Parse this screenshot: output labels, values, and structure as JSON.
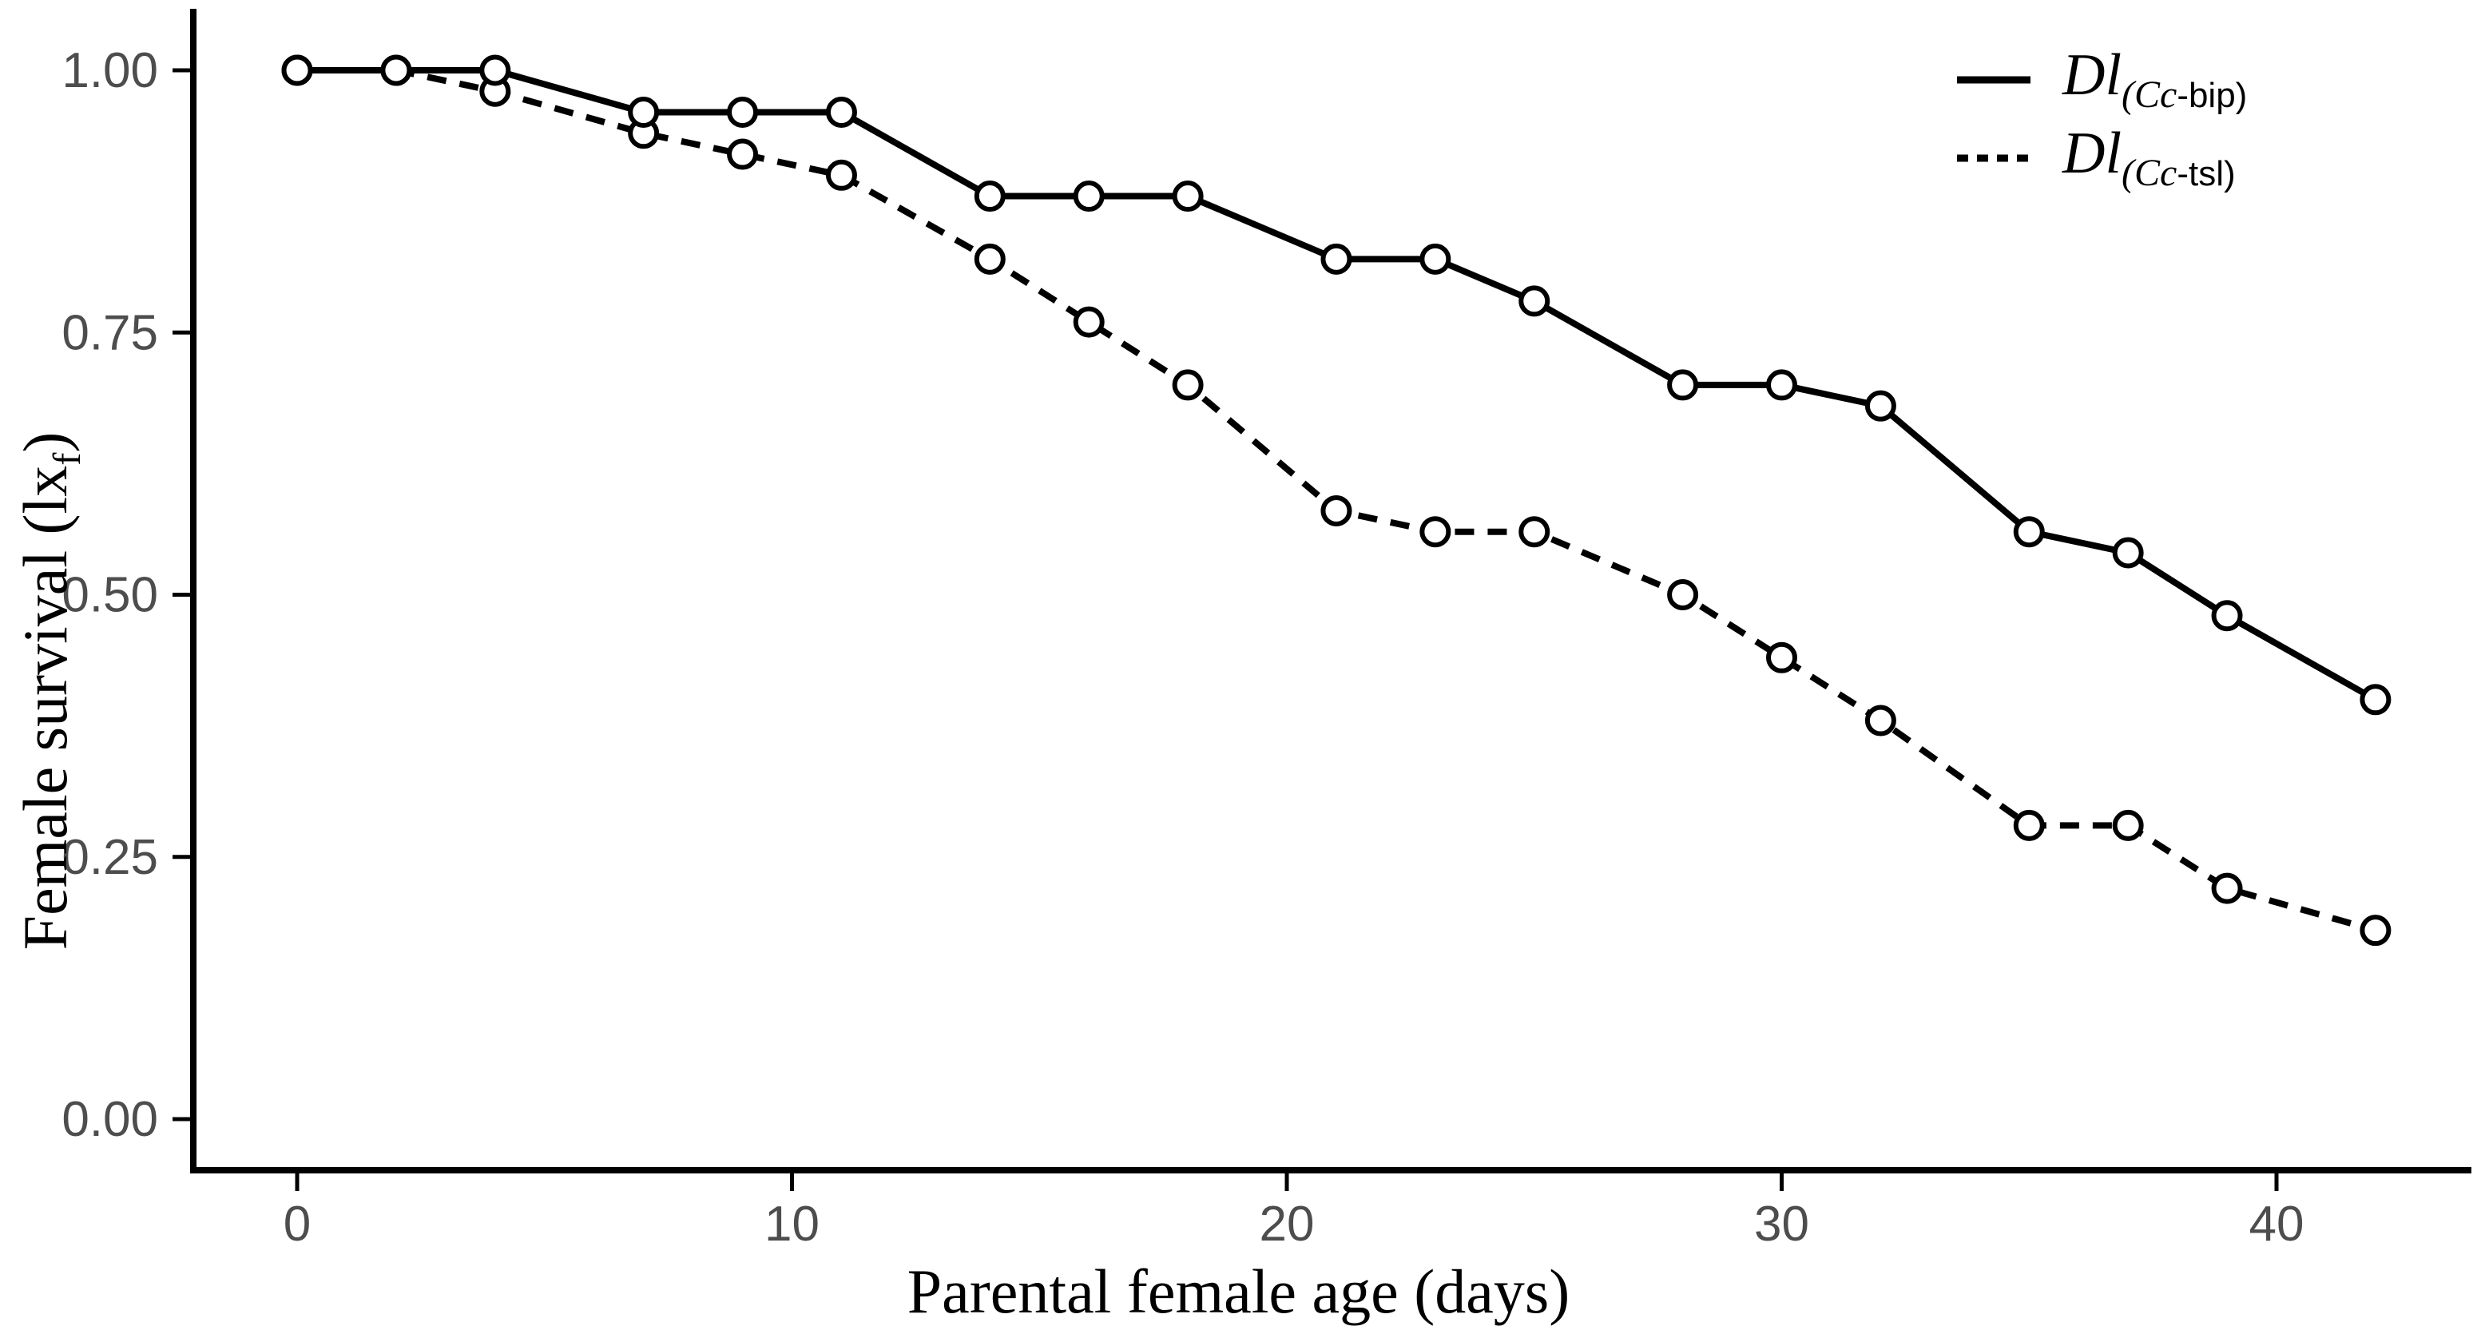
{
  "chart_data": {
    "type": "line",
    "title": "",
    "xlabel": "Parental female age (days)",
    "ylabel": {
      "pre": "Female survival (lx",
      "sub": "f",
      "post": ")"
    },
    "x": [
      0,
      2,
      4,
      7,
      9,
      11,
      14,
      16,
      18,
      21,
      23,
      25,
      28,
      30,
      32,
      35,
      37,
      39,
      42
    ],
    "series": [
      {
        "name": "Dl(Cc-bip)",
        "label": {
          "main": "Dl",
          "sub_italic": "(Cc",
          "sub_plain": "-bip)"
        },
        "line_style": "solid",
        "values": [
          1.0,
          1.0,
          1.0,
          0.96,
          0.96,
          0.96,
          0.88,
          0.88,
          0.88,
          0.82,
          0.82,
          0.78,
          0.7,
          0.7,
          0.68,
          0.56,
          0.54,
          0.48,
          0.4
        ]
      },
      {
        "name": "Dl(Cc-tsl)",
        "label": {
          "main": "Dl",
          "sub_italic": "(Cc",
          "sub_plain": "-tsl)"
        },
        "line_style": "dashed",
        "values": [
          1.0,
          1.0,
          0.98,
          0.94,
          0.92,
          0.9,
          0.82,
          0.76,
          0.7,
          0.58,
          0.56,
          0.56,
          0.5,
          0.44,
          0.38,
          0.28,
          0.28,
          0.22,
          0.18
        ]
      }
    ],
    "x_axis": {
      "ticks": [
        0,
        10,
        20,
        30,
        40
      ],
      "min": -2,
      "max": 44
    },
    "y_axis": {
      "tick_labels": [
        "0.00",
        "0.25",
        "0.50",
        "0.75",
        "1.00"
      ],
      "tick_values": [
        0,
        0.25,
        0.5,
        0.75,
        1.0
      ],
      "min": -0.05,
      "max": 1.05
    },
    "grid": false,
    "marker": "open-circle",
    "legend_position": "top-right",
    "colors": {
      "line": "#000000",
      "marker_fill": "#ffffff",
      "tick_label": "#4d4d4d",
      "axis": "#000000",
      "background": "#ffffff"
    }
  }
}
